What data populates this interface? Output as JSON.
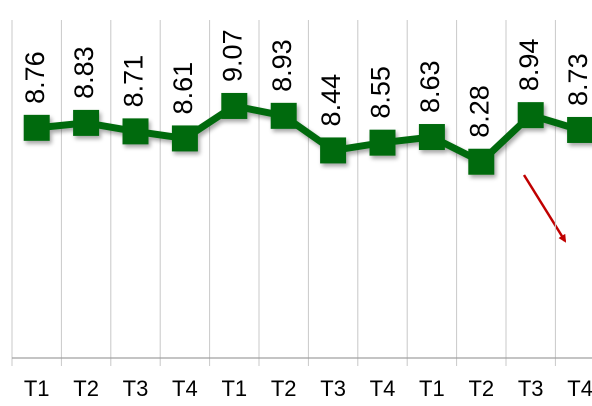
{
  "chart_data": {
    "type": "line",
    "categories": [
      "T1",
      "T2",
      "T3",
      "T4",
      "T1",
      "T2",
      "T3",
      "T4",
      "T1",
      "T2",
      "T3",
      "T4"
    ],
    "series": [
      {
        "color": "#006a0e",
        "values": [
          8.76,
          8.83,
          8.71,
          8.61,
          9.07,
          8.93,
          8.44,
          8.55,
          8.63,
          8.28,
          8.94,
          8.73
        ]
      }
    ],
    "ylim": [
      5.5,
      10.5
    ]
  }
}
